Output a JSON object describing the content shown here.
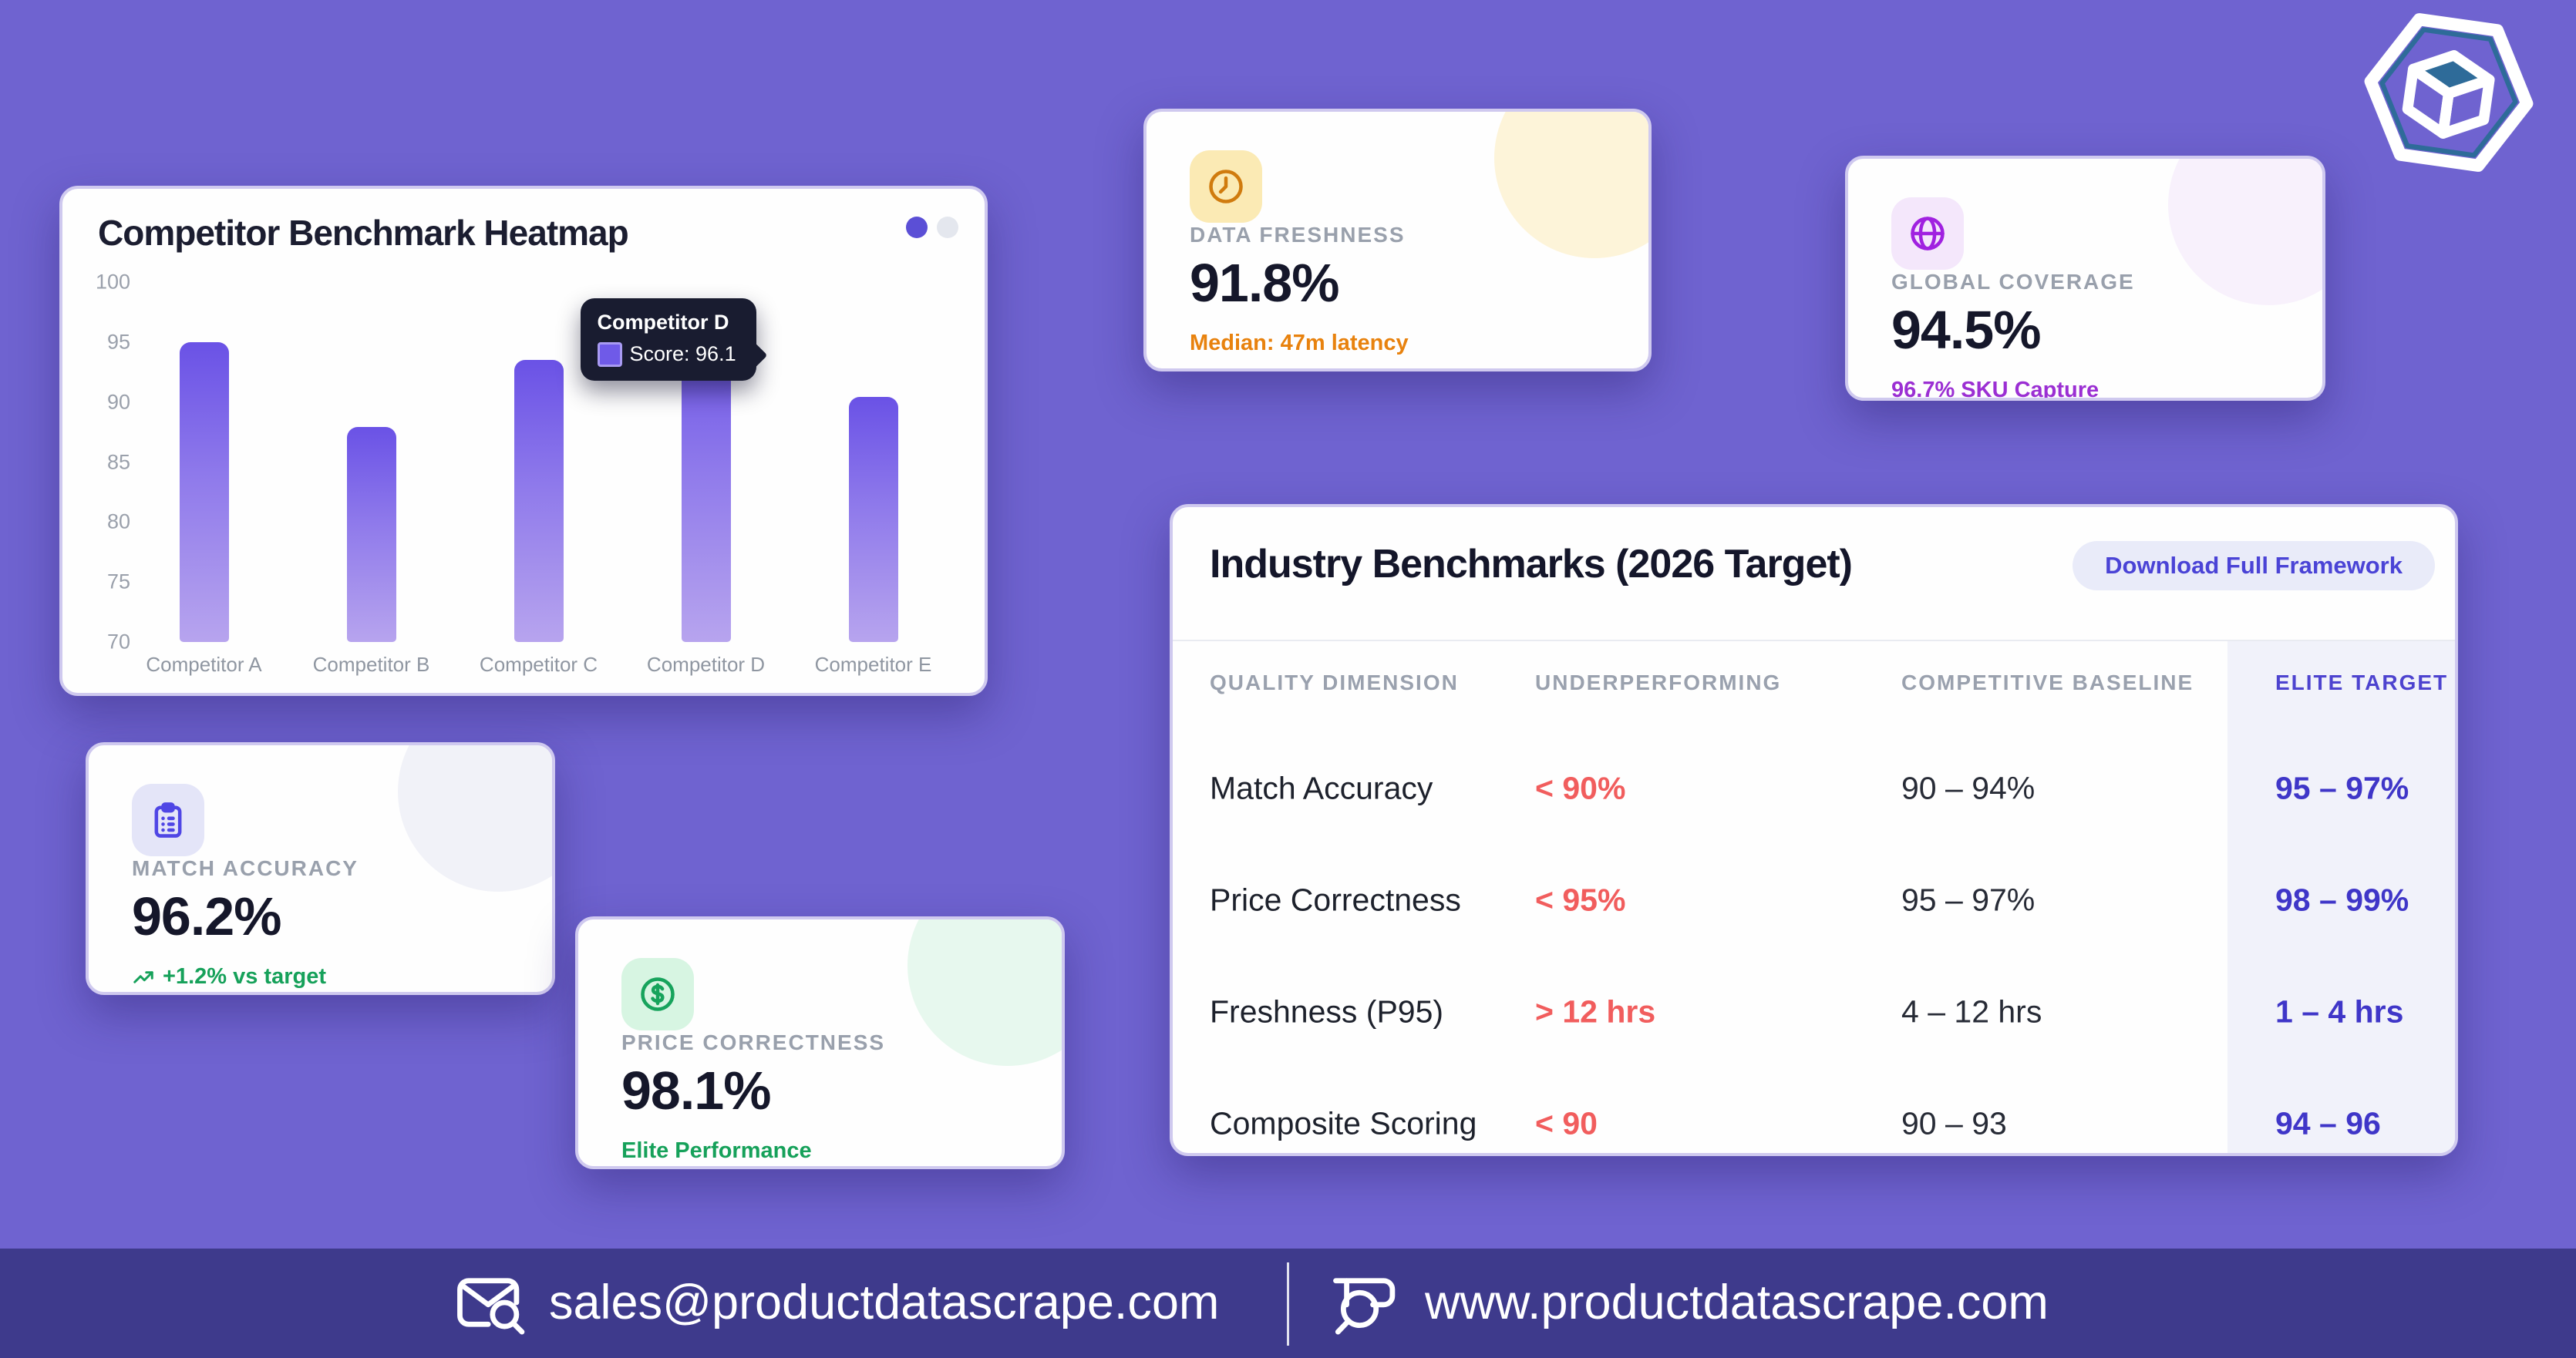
{
  "page": {
    "background_color": "#6f63d0",
    "footer_background": "#3e3a8c",
    "accent_indigo": "#4d43cf",
    "alert_red": "#f15d5d",
    "success_green": "#16a15a"
  },
  "brand": {
    "logo": "hexagon-cube",
    "logo_accent": "#2e6b99"
  },
  "chart_card": {
    "title": "Competitor Benchmark Heatmap",
    "pagination_dots": 2,
    "tooltip": {
      "title": "Competitor D",
      "text": "Score: 96.1",
      "swatch_color": "#6f5ae8"
    }
  },
  "chart_data": {
    "type": "bar",
    "title": "Competitor Benchmark Heatmap",
    "categories": [
      "Competitor A",
      "Competitor B",
      "Competitor C",
      "Competitor D",
      "Competitor E"
    ],
    "values": [
      95.0,
      87.9,
      93.5,
      96.1,
      90.4
    ],
    "xlabel": "",
    "ylabel": "",
    "ylim": [
      70,
      100
    ],
    "yticks": [
      70,
      75,
      80,
      85,
      90,
      95,
      100
    ],
    "grid": false,
    "legend": false,
    "bar_gradient": [
      "#6a52e6",
      "#b7a4ee"
    ],
    "tooltip_point": {
      "category": "Competitor D",
      "series": "Score",
      "value": 96.1
    }
  },
  "stats": [
    {
      "label": "DATA FRESHNESS",
      "value": "91.8%",
      "note": "Median: 47m latency",
      "note_color": "#e8820e",
      "icon": "clock",
      "icon_color": "#d07b0e",
      "tile_bg": "#fbeab4"
    },
    {
      "label": "GLOBAL COVERAGE",
      "value": "94.5%",
      "note": "96.7% SKU Capture",
      "note_color": "#9b2fd3",
      "icon": "globe",
      "icon_color": "#a021e0",
      "tile_bg": "#f4e7fb"
    },
    {
      "label": "MATCH ACCURACY",
      "value": "96.2%",
      "note": "+1.2% vs target",
      "note_color": "#16a15a",
      "icon": "clipboard",
      "icon_color": "#4f46e5",
      "tile_bg": "#e4e5f8"
    },
    {
      "label": "PRICE CORRECTNESS",
      "value": "98.1%",
      "note": "Elite Performance",
      "note_color": "#16a15a",
      "icon": "dollar",
      "icon_color": "#17a35c",
      "tile_bg": "#d7f5e2"
    }
  ],
  "table": {
    "title": "Industry Benchmarks (2026 Target)",
    "button_label": "Download Full Framework",
    "columns": [
      "QUALITY DIMENSION",
      "UNDERPERFORMING",
      "COMPETITIVE BASELINE",
      "ELITE TARGET"
    ],
    "rows": [
      {
        "dimension": "Match Accuracy",
        "under": "< 90%",
        "baseline": "90 – 94%",
        "elite": "95 – 97%"
      },
      {
        "dimension": "Price Correctness",
        "under": "< 95%",
        "baseline": "95 – 97%",
        "elite": "98 – 99%"
      },
      {
        "dimension": "Freshness (P95)",
        "under": "> 12 hrs",
        "baseline": "4 – 12 hrs",
        "elite": "1 – 4 hrs"
      },
      {
        "dimension": "Composite Scoring",
        "under": "< 90",
        "baseline": "90 – 93",
        "elite": "94 – 96"
      }
    ]
  },
  "footer": {
    "email": "sales@productdatascrape.com",
    "website": "www.productdatascrape.com"
  }
}
